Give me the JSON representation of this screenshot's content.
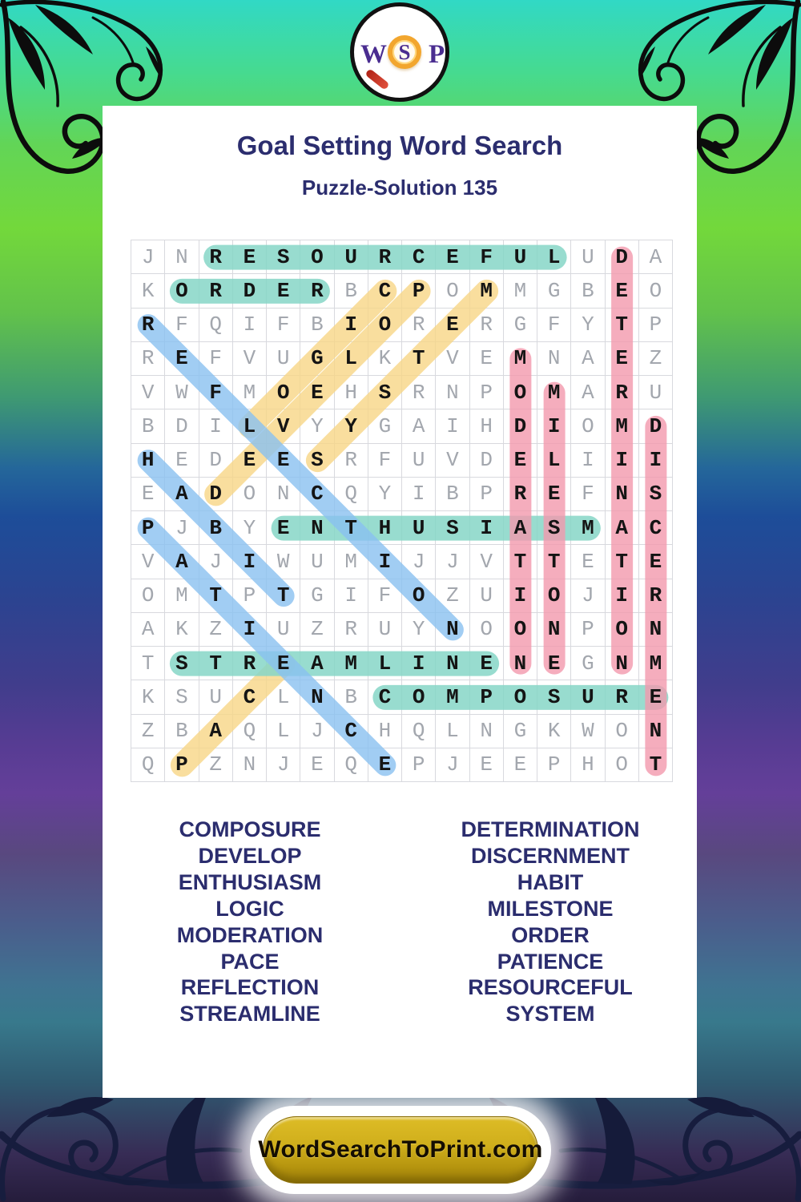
{
  "header": {
    "title": "Goal Setting Word Search",
    "subtitle": "Puzzle-Solution 135"
  },
  "logo": {
    "letters": [
      "W",
      "S",
      "P"
    ]
  },
  "footer": {
    "site": "WordSearchToPrint.com"
  },
  "colors": {
    "heading_text": "#2b2d6e",
    "letter_gray": "#a3a7ae",
    "letter_solution": "#141414",
    "button_gold": "#c5a214",
    "highlights": {
      "teal": "rgba(134,214,199,0.85)",
      "pink": "rgba(243,153,172,0.8)",
      "blue": "rgba(137,193,240,0.8)",
      "yellow": "rgba(247,214,134,0.8)"
    }
  },
  "grid": {
    "size": 16,
    "rows": [
      "JNRESOURCEFULUDA",
      "KORDERBCPOMMGBEO",
      "RFQIFBIORERGFYTP",
      "REFVUGLKTVEMNAEZ",
      "VWFMOEHSRNPOMARU",
      "BDILVYYGAIHDIOMD",
      "HEDEESRFUVDELIII",
      "EADONCQYIBPREFNS",
      "PJBYENTHUSIASMAC",
      "VAJIWUMIJJVTTETE",
      "OMTPTGIFOZUIOJIR",
      "AKZIUZRUYNOONPON",
      "TSTREAMLINENEGNM",
      "KSUCLNBCOMPOSURE",
      "ZBAQLJCHQLNGKWON",
      "QPZNJEQEPJEEPHOT"
    ],
    "placements": [
      {
        "word": "RESOURCEFUL",
        "r1": 1,
        "c1": 3,
        "r2": 1,
        "c2": 13,
        "color": "teal"
      },
      {
        "word": "ORDER",
        "r1": 2,
        "c1": 2,
        "r2": 2,
        "c2": 6,
        "color": "teal"
      },
      {
        "word": "ENTHUSIASM",
        "r1": 9,
        "c1": 5,
        "r2": 9,
        "c2": 14,
        "color": "teal"
      },
      {
        "word": "STREAMLINE",
        "r1": 13,
        "c1": 2,
        "r2": 13,
        "c2": 11,
        "color": "teal"
      },
      {
        "word": "COMPOSURE",
        "r1": 14,
        "c1": 8,
        "r2": 14,
        "c2": 16,
        "color": "teal"
      },
      {
        "word": "DETERMINATION",
        "r1": 1,
        "c1": 15,
        "r2": 13,
        "c2": 15,
        "color": "pink"
      },
      {
        "word": "MODERATION",
        "r1": 4,
        "c1": 12,
        "r2": 13,
        "c2": 12,
        "color": "pink"
      },
      {
        "word": "MILESTONE",
        "r1": 5,
        "c1": 13,
        "r2": 13,
        "c2": 13,
        "color": "pink"
      },
      {
        "word": "DISCERNMENT",
        "r1": 6,
        "c1": 16,
        "r2": 16,
        "c2": 16,
        "color": "pink"
      },
      {
        "word": "REFLECTION",
        "r1": 3,
        "c1": 1,
        "r2": 12,
        "c2": 10,
        "color": "blue"
      },
      {
        "word": "HABIT",
        "r1": 7,
        "c1": 1,
        "r2": 11,
        "c2": 5,
        "color": "blue"
      },
      {
        "word": "PATIENCE",
        "r1": 9,
        "c1": 1,
        "r2": 16,
        "c2": 8,
        "color": "blue"
      },
      {
        "word": "DEVELOP",
        "r1": 8,
        "c1": 3,
        "r2": 2,
        "c2": 9,
        "color": "yellow"
      },
      {
        "word": "LOGIC",
        "r1": 6,
        "c1": 4,
        "r2": 2,
        "c2": 8,
        "color": "yellow"
      },
      {
        "word": "SYSTEM",
        "r1": 7,
        "c1": 6,
        "r2": 2,
        "c2": 11,
        "color": "yellow"
      },
      {
        "word": "PACE",
        "r1": 16,
        "c1": 2,
        "r2": 13,
        "c2": 5,
        "color": "yellow"
      }
    ]
  },
  "word_list": {
    "left": [
      "COMPOSURE",
      "DEVELOP",
      "ENTHUSIASM",
      "LOGIC",
      "MODERATION",
      "PACE",
      "REFLECTION",
      "STREAMLINE"
    ],
    "right": [
      "DETERMINATION",
      "DISCERNMENT",
      "HABIT",
      "MILESTONE",
      "ORDER",
      "PATIENCE",
      "RESOURCEFUL",
      "SYSTEM"
    ]
  }
}
